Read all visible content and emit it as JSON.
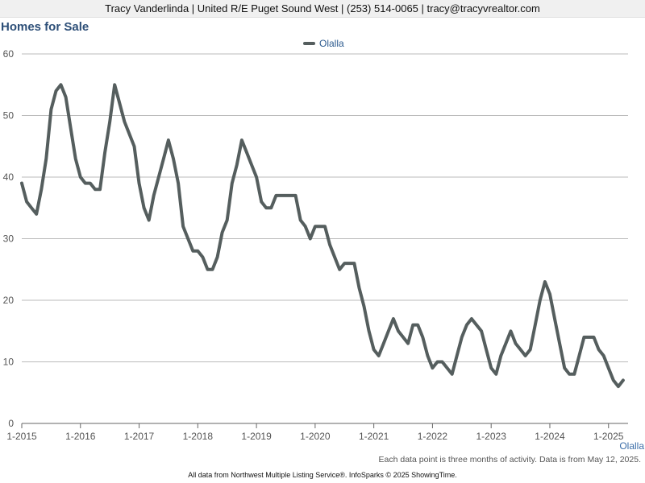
{
  "header": {
    "text": "Tracy Vanderlinda | United R/E Puget Sound West | (253) 514-0065 | tracy@tracyvrealtor.com"
  },
  "colors": {
    "series_line": "#555e5e",
    "title": "#2d4f78",
    "legend_text": "#2d5b8f",
    "gridline": "#bbbbbb"
  },
  "area_name": "Olalla",
  "footnote": "Each data point is three months of activity. Data is from May 12, 2025.",
  "footer": "All data from Northwest Multiple Listing Service®. InfoSparks © 2025 ShowingTime.",
  "chart_data": {
    "type": "line",
    "title": "Homes for Sale",
    "xlabel": "",
    "ylabel": "",
    "ylim": [
      0,
      60
    ],
    "yticks": [
      0,
      10,
      20,
      30,
      40,
      50,
      60
    ],
    "xlim": [
      "2015-01",
      "2025-05"
    ],
    "xtick_labels": [
      "1-2015",
      "1-2016",
      "1-2017",
      "1-2018",
      "1-2019",
      "1-2020",
      "1-2021",
      "1-2022",
      "1-2023",
      "1-2024",
      "1-2025"
    ],
    "grid": "horizontal",
    "legend_position": "top-center",
    "series": [
      {
        "name": "Olalla",
        "points": [
          [
            "2015-01",
            39
          ],
          [
            "2015-02",
            36
          ],
          [
            "2015-03",
            35
          ],
          [
            "2015-04",
            34
          ],
          [
            "2015-05",
            38
          ],
          [
            "2015-06",
            43
          ],
          [
            "2015-07",
            51
          ],
          [
            "2015-08",
            54
          ],
          [
            "2015-09",
            55
          ],
          [
            "2015-10",
            53
          ],
          [
            "2015-11",
            48
          ],
          [
            "2015-12",
            43
          ],
          [
            "2016-01",
            40
          ],
          [
            "2016-02",
            39
          ],
          [
            "2016-03",
            39
          ],
          [
            "2016-04",
            38
          ],
          [
            "2016-05",
            38
          ],
          [
            "2016-06",
            44
          ],
          [
            "2016-07",
            49
          ],
          [
            "2016-08",
            55
          ],
          [
            "2016-09",
            52
          ],
          [
            "2016-10",
            49
          ],
          [
            "2016-11",
            47
          ],
          [
            "2016-12",
            45
          ],
          [
            "2017-01",
            39
          ],
          [
            "2017-02",
            35
          ],
          [
            "2017-03",
            33
          ],
          [
            "2017-04",
            37
          ],
          [
            "2017-05",
            40
          ],
          [
            "2017-06",
            43
          ],
          [
            "2017-07",
            46
          ],
          [
            "2017-08",
            43
          ],
          [
            "2017-09",
            39
          ],
          [
            "2017-10",
            32
          ],
          [
            "2017-11",
            30
          ],
          [
            "2017-12",
            28
          ],
          [
            "2018-01",
            28
          ],
          [
            "2018-02",
            27
          ],
          [
            "2018-03",
            25
          ],
          [
            "2018-04",
            25
          ],
          [
            "2018-05",
            27
          ],
          [
            "2018-06",
            31
          ],
          [
            "2018-07",
            33
          ],
          [
            "2018-08",
            39
          ],
          [
            "2018-09",
            42
          ],
          [
            "2018-10",
            46
          ],
          [
            "2018-11",
            44
          ],
          [
            "2018-12",
            42
          ],
          [
            "2019-01",
            40
          ],
          [
            "2019-02",
            36
          ],
          [
            "2019-03",
            35
          ],
          [
            "2019-04",
            35
          ],
          [
            "2019-05",
            37
          ],
          [
            "2019-06",
            37
          ],
          [
            "2019-07",
            37
          ],
          [
            "2019-08",
            37
          ],
          [
            "2019-09",
            37
          ],
          [
            "2019-10",
            33
          ],
          [
            "2019-11",
            32
          ],
          [
            "2019-12",
            30
          ],
          [
            "2020-01",
            32
          ],
          [
            "2020-02",
            32
          ],
          [
            "2020-03",
            32
          ],
          [
            "2020-04",
            29
          ],
          [
            "2020-05",
            27
          ],
          [
            "2020-06",
            25
          ],
          [
            "2020-07",
            26
          ],
          [
            "2020-08",
            26
          ],
          [
            "2020-09",
            26
          ],
          [
            "2020-10",
            22
          ],
          [
            "2020-11",
            19
          ],
          [
            "2020-12",
            15
          ],
          [
            "2021-01",
            12
          ],
          [
            "2021-02",
            11
          ],
          [
            "2021-03",
            13
          ],
          [
            "2021-04",
            15
          ],
          [
            "2021-05",
            17
          ],
          [
            "2021-06",
            15
          ],
          [
            "2021-07",
            14
          ],
          [
            "2021-08",
            13
          ],
          [
            "2021-09",
            16
          ],
          [
            "2021-10",
            16
          ],
          [
            "2021-11",
            14
          ],
          [
            "2021-12",
            11
          ],
          [
            "2022-01",
            9
          ],
          [
            "2022-02",
            10
          ],
          [
            "2022-03",
            10
          ],
          [
            "2022-04",
            9
          ],
          [
            "2022-05",
            8
          ],
          [
            "2022-06",
            11
          ],
          [
            "2022-07",
            14
          ],
          [
            "2022-08",
            16
          ],
          [
            "2022-09",
            17
          ],
          [
            "2022-10",
            16
          ],
          [
            "2022-11",
            15
          ],
          [
            "2022-12",
            12
          ],
          [
            "2023-01",
            9
          ],
          [
            "2023-02",
            8
          ],
          [
            "2023-03",
            11
          ],
          [
            "2023-04",
            13
          ],
          [
            "2023-05",
            15
          ],
          [
            "2023-06",
            13
          ],
          [
            "2023-07",
            12
          ],
          [
            "2023-08",
            11
          ],
          [
            "2023-09",
            12
          ],
          [
            "2023-10",
            16
          ],
          [
            "2023-11",
            20
          ],
          [
            "2023-12",
            23
          ],
          [
            "2024-01",
            21
          ],
          [
            "2024-02",
            17
          ],
          [
            "2024-03",
            13
          ],
          [
            "2024-04",
            9
          ],
          [
            "2024-05",
            8
          ],
          [
            "2024-06",
            8
          ],
          [
            "2024-07",
            11
          ],
          [
            "2024-08",
            14
          ],
          [
            "2024-09",
            14
          ],
          [
            "2024-10",
            14
          ],
          [
            "2024-11",
            12
          ],
          [
            "2024-12",
            11
          ],
          [
            "2025-01",
            9
          ],
          [
            "2025-02",
            7
          ],
          [
            "2025-03",
            6
          ],
          [
            "2025-04",
            7
          ]
        ]
      }
    ]
  }
}
